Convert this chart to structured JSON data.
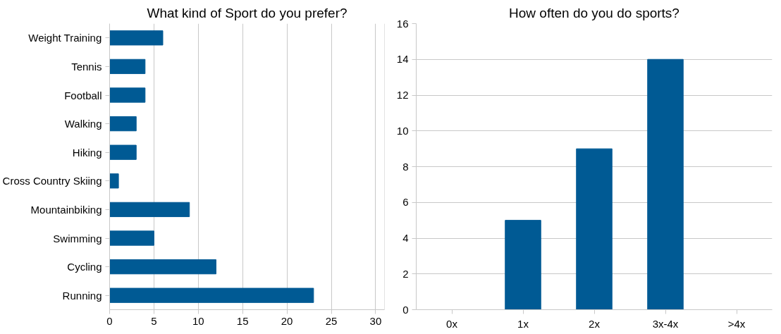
{
  "chart_data": [
    {
      "type": "bar",
      "title": "What kind of Sport do you prefer?",
      "orientation": "horizontal",
      "categories": [
        "Weight Training",
        "Tennis",
        "Football",
        "Walking",
        "Hiking",
        "Cross Country Skiing",
        "Mountainbiking",
        "Swimming",
        "Cycling",
        "Running"
      ],
      "values": [
        6,
        4,
        4,
        3,
        3,
        1,
        9,
        5,
        12,
        23
      ],
      "color": "#005a94",
      "xlim": [
        0,
        31
      ],
      "xticks": [
        0,
        5,
        10,
        15,
        20,
        25,
        30
      ],
      "grid": "x"
    },
    {
      "type": "bar",
      "title": "How often do you do sports?",
      "categories": [
        "0x",
        "1x",
        "2x",
        "3x-4x",
        ">4x"
      ],
      "values": [
        0,
        5,
        9,
        14,
        0
      ],
      "color": "#005a94",
      "ylim": [
        0,
        16
      ],
      "yticks": [
        0,
        2,
        4,
        6,
        8,
        10,
        12,
        14,
        16
      ],
      "grid": "y"
    }
  ]
}
